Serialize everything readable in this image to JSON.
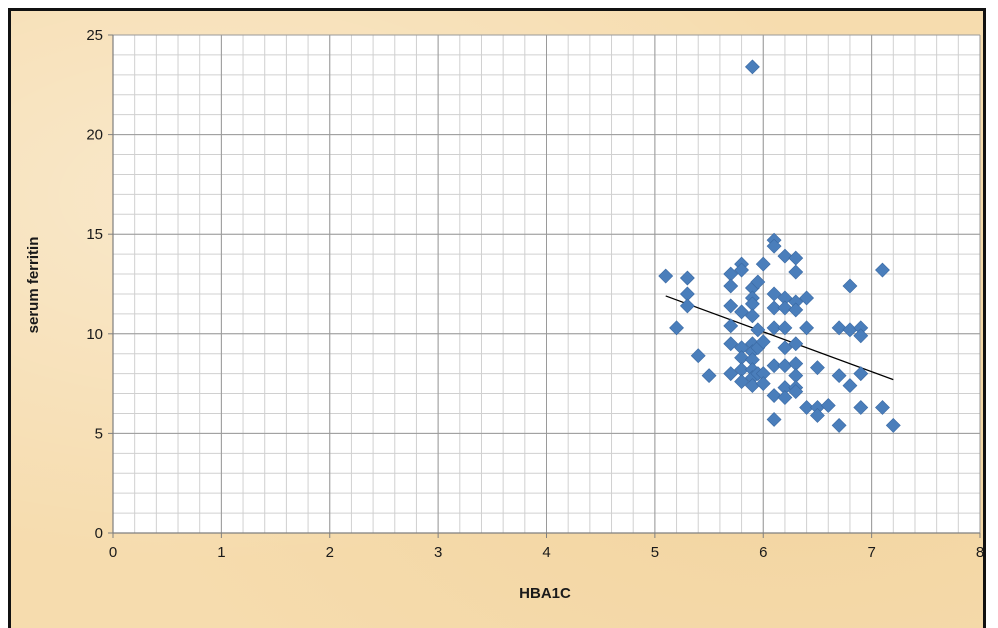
{
  "chart_data": {
    "type": "scatter",
    "title": "",
    "xlabel": "HBA1C",
    "ylabel": "serum ferritin",
    "xlim": [
      0,
      8
    ],
    "ylim": [
      0,
      25
    ],
    "x_ticks": [
      "0",
      "1",
      "2",
      "3",
      "4",
      "5",
      "6",
      "7",
      "8"
    ],
    "y_ticks": [
      "0",
      "5",
      "10",
      "15",
      "20",
      "25"
    ],
    "major_x_step": 1,
    "major_y_step": 5,
    "minor_x_step": 0.2,
    "minor_y_step": 1,
    "grid": true,
    "legend": "none",
    "marker": "diamond",
    "marker_color": "#4a7ebb",
    "trendline_color": "#000000",
    "points": [
      [
        5.1,
        12.9
      ],
      [
        5.2,
        10.3
      ],
      [
        5.3,
        12.8
      ],
      [
        5.3,
        12.0
      ],
      [
        5.3,
        11.4
      ],
      [
        5.4,
        8.9
      ],
      [
        5.5,
        7.9
      ],
      [
        5.7,
        13.0
      ],
      [
        5.7,
        12.4
      ],
      [
        5.7,
        11.4
      ],
      [
        5.7,
        10.4
      ],
      [
        5.7,
        9.5
      ],
      [
        5.7,
        8.0
      ],
      [
        5.8,
        13.5
      ],
      [
        5.8,
        13.2
      ],
      [
        5.8,
        11.1
      ],
      [
        5.8,
        9.3
      ],
      [
        5.8,
        8.8
      ],
      [
        5.8,
        8.2
      ],
      [
        5.8,
        7.6
      ],
      [
        5.9,
        23.4
      ],
      [
        5.9,
        12.3
      ],
      [
        5.9,
        11.8
      ],
      [
        5.9,
        11.5
      ],
      [
        5.9,
        10.9
      ],
      [
        5.9,
        9.5
      ],
      [
        5.9,
        9.1
      ],
      [
        5.9,
        8.7
      ],
      [
        5.9,
        8.2
      ],
      [
        5.9,
        7.8
      ],
      [
        5.9,
        7.4
      ],
      [
        5.95,
        12.6
      ],
      [
        5.95,
        10.2
      ],
      [
        5.95,
        9.3
      ],
      [
        5.95,
        8.0
      ],
      [
        6.0,
        13.5
      ],
      [
        6.0,
        9.6
      ],
      [
        6.0,
        8.0
      ],
      [
        6.0,
        7.5
      ],
      [
        6.1,
        14.7
      ],
      [
        6.1,
        14.4
      ],
      [
        6.1,
        12.0
      ],
      [
        6.1,
        11.3
      ],
      [
        6.1,
        10.3
      ],
      [
        6.1,
        8.4
      ],
      [
        6.1,
        6.9
      ],
      [
        6.1,
        5.7
      ],
      [
        6.2,
        13.9
      ],
      [
        6.2,
        11.8
      ],
      [
        6.2,
        11.3
      ],
      [
        6.2,
        10.3
      ],
      [
        6.2,
        9.3
      ],
      [
        6.2,
        8.4
      ],
      [
        6.2,
        7.3
      ],
      [
        6.2,
        6.8
      ],
      [
        6.3,
        13.8
      ],
      [
        6.3,
        13.1
      ],
      [
        6.3,
        11.6
      ],
      [
        6.3,
        11.2
      ],
      [
        6.3,
        9.5
      ],
      [
        6.3,
        8.5
      ],
      [
        6.3,
        7.9
      ],
      [
        6.3,
        7.3
      ],
      [
        6.3,
        7.1
      ],
      [
        6.4,
        11.8
      ],
      [
        6.4,
        10.3
      ],
      [
        6.4,
        6.3
      ],
      [
        6.5,
        8.3
      ],
      [
        6.5,
        6.3
      ],
      [
        6.5,
        5.9
      ],
      [
        6.6,
        6.4
      ],
      [
        6.7,
        10.3
      ],
      [
        6.7,
        7.9
      ],
      [
        6.7,
        5.4
      ],
      [
        6.8,
        12.4
      ],
      [
        6.8,
        10.2
      ],
      [
        6.8,
        7.4
      ],
      [
        6.9,
        10.3
      ],
      [
        6.9,
        9.9
      ],
      [
        6.9,
        8.0
      ],
      [
        6.9,
        6.3
      ],
      [
        7.1,
        13.2
      ],
      [
        7.1,
        6.3
      ],
      [
        7.2,
        5.4
      ]
    ],
    "trendline": [
      [
        5.1,
        11.9
      ],
      [
        7.2,
        7.7
      ]
    ]
  }
}
